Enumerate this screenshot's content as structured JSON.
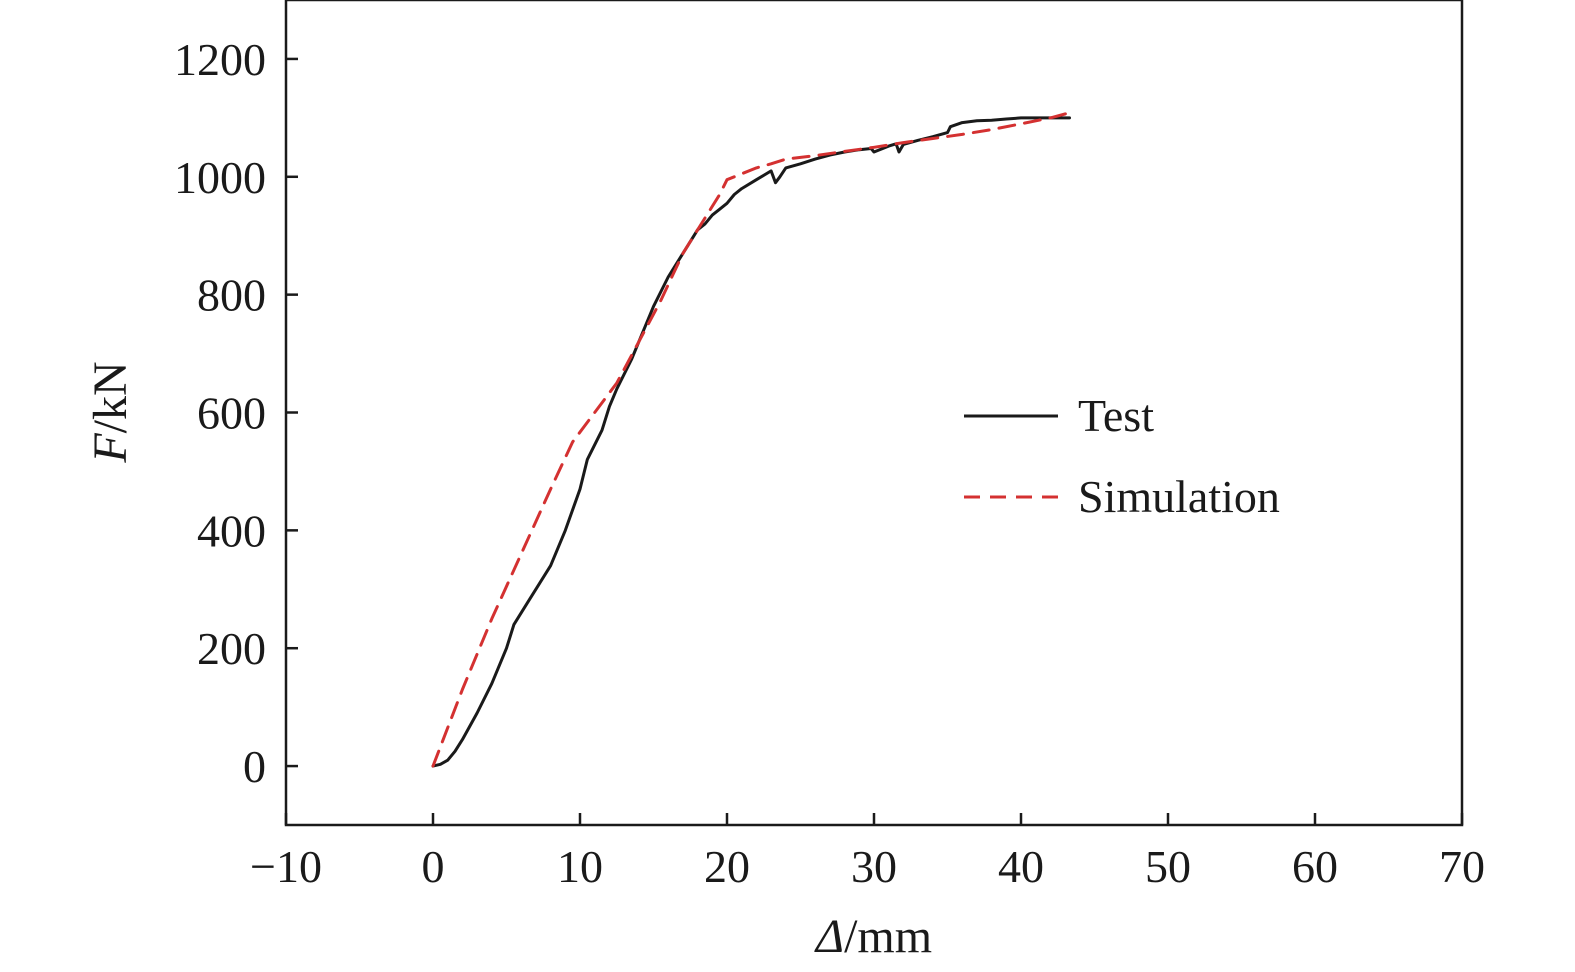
{
  "chart_data": {
    "type": "line",
    "title": "",
    "xlabel_symbol": "Δ",
    "xlabel_unit": "/mm",
    "ylabel_symbol": "F",
    "ylabel_unit": "/kN",
    "xlim": [
      -10,
      70
    ],
    "ylim": [
      -100,
      1300
    ],
    "xticks": [
      -10,
      0,
      10,
      20,
      30,
      40,
      50,
      60,
      70
    ],
    "xtick_labels": [
      "−10",
      "0",
      "10",
      "20",
      "30",
      "40",
      "50",
      "60",
      "70"
    ],
    "yticks": [
      0,
      200,
      400,
      600,
      800,
      1000,
      1200
    ],
    "ytick_labels": [
      "0",
      "200",
      "400",
      "600",
      "800",
      "1000",
      "1200"
    ],
    "grid": false,
    "legend_position": "right-middle",
    "series": [
      {
        "name": "Test",
        "color": "#1a1a1a",
        "style": "solid",
        "x": [
          0,
          0.5,
          1,
          1.5,
          2,
          3,
          4,
          5,
          5.5,
          6.5,
          8,
          9,
          10,
          10.5,
          11.5,
          12,
          12.5,
          13.5,
          14,
          15,
          16,
          17,
          17.5,
          18,
          18.5,
          19,
          19.5,
          20,
          20.5,
          21,
          22,
          23,
          23.3,
          23.6,
          24,
          25,
          26,
          27,
          28,
          29,
          29.8,
          30,
          31,
          31.5,
          31.7,
          32,
          33,
          34,
          35,
          35.2,
          36,
          37,
          38,
          39,
          40,
          41,
          42,
          43,
          43.3
        ],
        "y": [
          0,
          3,
          10,
          25,
          45,
          90,
          140,
          200,
          240,
          280,
          340,
          400,
          470,
          520,
          570,
          610,
          640,
          690,
          720,
          780,
          830,
          870,
          890,
          910,
          920,
          935,
          945,
          955,
          970,
          980,
          995,
          1010,
          990,
          1000,
          1015,
          1022,
          1030,
          1037,
          1042,
          1046,
          1048,
          1042,
          1052,
          1056,
          1042,
          1055,
          1062,
          1068,
          1075,
          1085,
          1092,
          1095,
          1096,
          1098,
          1100,
          1100,
          1100,
          1100,
          1100
        ]
      },
      {
        "name": "Simulation",
        "color": "#d43131",
        "style": "dashed",
        "x": [
          0,
          2,
          4,
          6,
          8,
          9.5,
          11,
          12.5,
          14,
          15.5,
          17,
          18.5,
          19.5,
          20,
          21,
          22,
          23,
          24,
          26,
          28,
          30,
          32,
          34,
          36,
          38,
          40,
          42,
          43.5
        ],
        "y": [
          0,
          130,
          250,
          360,
          470,
          550,
          600,
          650,
          720,
          790,
          870,
          930,
          970,
          995,
          1005,
          1015,
          1022,
          1030,
          1036,
          1043,
          1050,
          1058,
          1065,
          1072,
          1080,
          1090,
          1100,
          1110
        ]
      }
    ]
  }
}
